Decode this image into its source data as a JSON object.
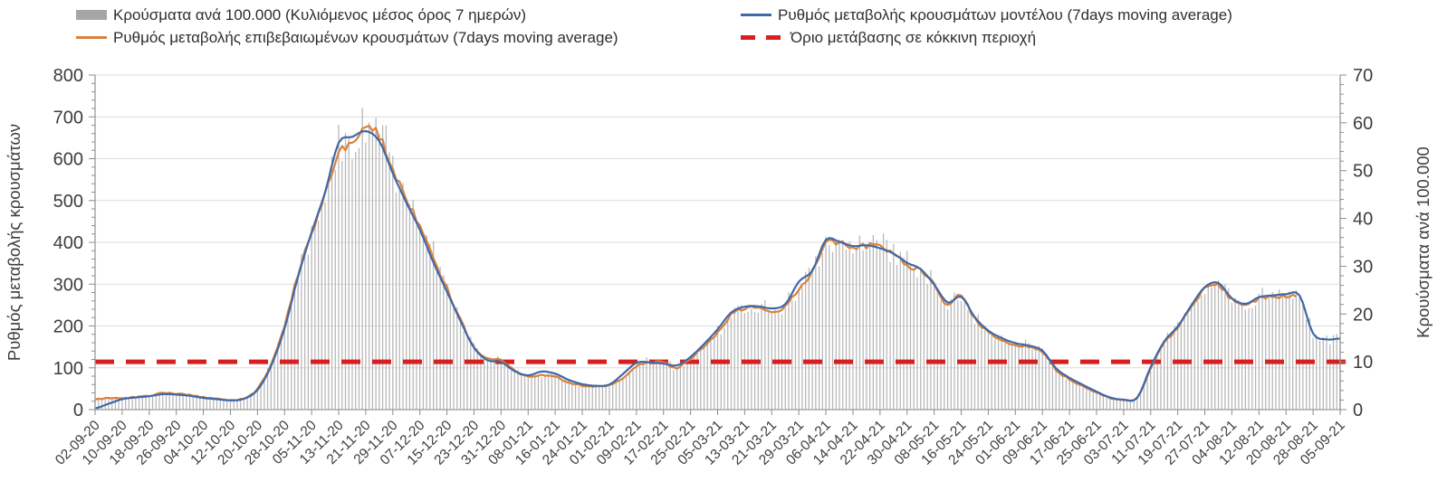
{
  "legend": {
    "items": [
      {
        "label": "Κρούσματα ανά 100.000 (Κυλιόμενος μέσος όρος 7 ημερών)",
        "marker": "bar-swatch",
        "color": "#a6a6a6"
      },
      {
        "label": "Ρυθμός μεταβολής κρουσμάτων μοντέλου (7days moving average)",
        "marker": "line-swatch",
        "color": "#3f68a8"
      },
      {
        "label": "Ρυθμός μεταβολής επιβεβαιωμένων κρουσμάτων (7days moving average)",
        "marker": "line-swatch",
        "color": "#d9813c"
      },
      {
        "label": "Όριο μετάβασης σε κόκκινη περιοχή",
        "marker": "dashed-swatch",
        "color": "#d71f1f"
      }
    ]
  },
  "chart_data": {
    "type": "bar+line combo",
    "title": "",
    "x_start_label": "02-09-20",
    "x_end_label": "05-09-21",
    "days_span": 368,
    "x_tick_interval_days": 8,
    "x_tick_labels": [
      "02-09-20",
      "10-09-20",
      "18-09-20",
      "26-09-20",
      "04-10-20",
      "12-10-20",
      "20-10-20",
      "28-10-20",
      "05-11-20",
      "13-11-20",
      "21-11-20",
      "29-11-20",
      "07-12-20",
      "15-12-20",
      "23-12-20",
      "31-12-20",
      "08-01-21",
      "16-01-21",
      "24-01-21",
      "01-02-21",
      "09-02-21",
      "17-02-21",
      "25-02-21",
      "05-03-21",
      "13-03-21",
      "21-03-21",
      "29-03-21",
      "06-04-21",
      "14-04-21",
      "22-04-21",
      "30-04-21",
      "08-05-21",
      "16-05-21",
      "24-05-21",
      "01-06-21",
      "09-06-21",
      "17-06-21",
      "25-06-21",
      "03-07-21",
      "11-07-21",
      "19-07-21",
      "27-07-21",
      "04-08-21",
      "12-08-21",
      "20-08-21",
      "28-08-21",
      "05-09-21"
    ],
    "left_axis": {
      "label": "Ρυθμός μεταβολής κρουσμάτων",
      "min": 0,
      "max": 800,
      "major_step": 100,
      "minor_step": 20
    },
    "right_axis": {
      "label": "Κρουύσματα ανά 100.000",
      "min": 0,
      "max": 70,
      "major_step": 10,
      "minor_step": 2
    },
    "grid": {
      "horizontal": true,
      "vertical": false,
      "color": "#dcdcdc"
    },
    "threshold": {
      "name": "Όριο μετάβασης σε κόκκινη περιοχή",
      "value_right_axis": 10,
      "color": "#d71f1f",
      "style": "dashed"
    },
    "series": [
      {
        "name": "Ρυθμός μεταβολής κρουσμάτων μοντέλου (7days moving average)",
        "type": "line",
        "axis": "left",
        "color": "#3f68a8",
        "sample_step_days": 4,
        "values": [
          3,
          14,
          25,
          29,
          32,
          37,
          36,
          33,
          28,
          25,
          22,
          26,
          47,
          104,
          194,
          318,
          424,
          520,
          638,
          652,
          666,
          642,
          565,
          495,
          430,
          352,
          282,
          212,
          148,
          118,
          114,
          92,
          82,
          91,
          86,
          71,
          61,
          57,
          60,
          85,
          112,
          113,
          110,
          106,
          126,
          157,
          192,
          232,
          246,
          247,
          242,
          252,
          306,
          332,
          406,
          401,
          391,
          393,
          386,
          373,
          351,
          336,
          299,
          256,
          270,
          221,
          189,
          171,
          159,
          153,
          141,
          99,
          76,
          59,
          43,
          29,
          24,
          28,
          102,
          163,
          199,
          249,
          293,
          303,
          266,
          253,
          269,
          273,
          276,
          273,
          182,
          168,
          170
        ]
      },
      {
        "name": "Ρυθμός μεταβολής επιβεβαιωμένων κρουσμάτων (7days moving average)",
        "type": "line",
        "axis": "left",
        "color": "#d9813c",
        "sample_step_days": 4,
        "values": [
          25,
          27,
          28,
          30,
          33,
          40,
          38,
          35,
          30,
          26,
          23,
          27,
          50,
          110,
          200,
          325,
          420,
          512,
          612,
          640,
          676,
          655,
          575,
          505,
          440,
          360,
          290,
          215,
          150,
          122,
          118,
          95,
          78,
          82,
          80,
          65,
          58,
          55,
          58,
          76,
          104,
          113,
          112,
          100,
          122,
          152,
          182,
          226,
          242,
          240,
          236,
          246,
          290,
          330,
          396,
          398,
          386,
          391,
          390,
          371,
          346,
          331,
          300,
          251,
          272,
          216,
          186,
          166,
          156,
          151,
          138,
          96,
          73,
          56,
          41,
          28,
          23,
          29,
          97,
          158,
          196,
          246,
          289,
          296,
          263,
          249,
          266,
          269,
          271,
          272,
          null,
          null,
          null
        ]
      },
      {
        "name": "Κρούσματα ανά 100.000 (Κυλιόμενος μέσος όρος 7 ημερών)",
        "type": "bar",
        "axis": "right",
        "color": "#b6b6b6",
        "note": "daily bars; 7-day moving average equals the confirmed-cases line (right axis = left axis × 70/800)",
        "derive_from_series": 1,
        "fallback_series": 0,
        "right_per_left": 0.0875,
        "jitter_amplitude": 0.14,
        "weekly_spike": 0.05
      }
    ]
  }
}
